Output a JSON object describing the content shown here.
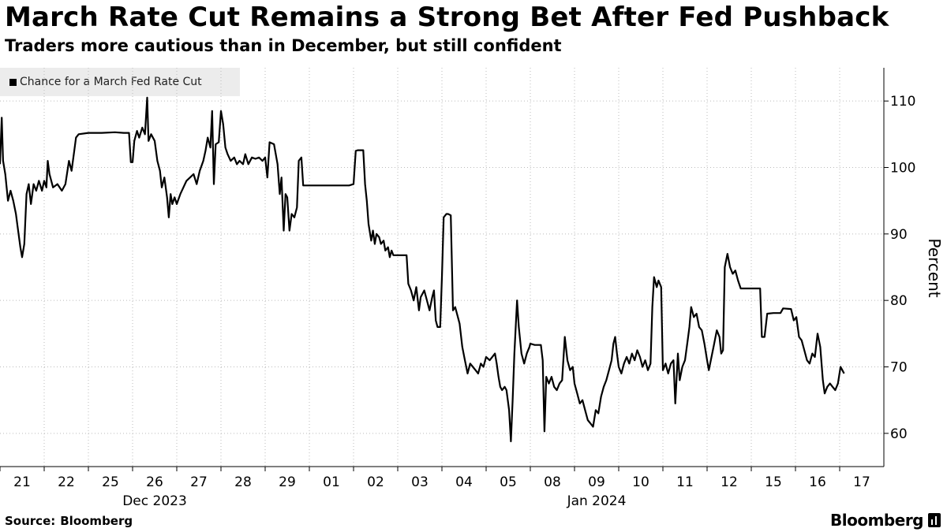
{
  "header": {
    "title": "March Rate Cut Remains a Strong Bet After Fed Pushback",
    "subtitle": "Traders more cautious than in December, but still confident"
  },
  "footer": {
    "source_label": "Source:",
    "source_value": "Bloomberg",
    "brand": "Bloomberg"
  },
  "colors": {
    "line": "#000000",
    "grid": "#bbbbbb",
    "legend_bg": "#ececec"
  },
  "chart_data": {
    "type": "line",
    "title": "March Rate Cut Remains a Strong Bet After Fed Pushback",
    "subtitle": "Traders more cautious than in December, but still confident",
    "ylabel": "Percent",
    "xlabel": "",
    "ylim": [
      55,
      115
    ],
    "yticks": [
      60,
      70,
      80,
      90,
      100,
      110
    ],
    "grid": "horizontal dotted",
    "legend": "top-left",
    "x_tick_labels": [
      "21",
      "22",
      "25",
      "26",
      "27",
      "28",
      "29",
      "01",
      "02",
      "03",
      "04",
      "05",
      "08",
      "09",
      "10",
      "11",
      "12",
      "15",
      "16",
      "17"
    ],
    "x_group_labels": [
      {
        "label": "Dec 2023",
        "center_session": 3
      },
      {
        "label": "Jan 2024",
        "center_session": 13
      }
    ],
    "x_domain": [
      0,
      20
    ],
    "series": [
      {
        "name": "Chance for a March Fed Rate Cut",
        "points": [
          [
            0.0,
            100.5
          ],
          [
            0.04,
            107.5
          ],
          [
            0.07,
            101
          ],
          [
            0.12,
            99
          ],
          [
            0.18,
            95
          ],
          [
            0.24,
            96.5
          ],
          [
            0.3,
            95
          ],
          [
            0.36,
            93
          ],
          [
            0.4,
            91
          ],
          [
            0.46,
            88
          ],
          [
            0.5,
            86.5
          ],
          [
            0.55,
            88.5
          ],
          [
            0.6,
            96
          ],
          [
            0.65,
            97.5
          ],
          [
            0.7,
            94.5
          ],
          [
            0.76,
            97.5
          ],
          [
            0.82,
            96.5
          ],
          [
            0.88,
            98
          ],
          [
            0.95,
            96.5
          ],
          [
            1.0,
            98
          ],
          [
            1.05,
            97
          ],
          [
            1.08,
            101
          ],
          [
            1.12,
            99
          ],
          [
            1.2,
            97
          ],
          [
            1.3,
            97.5
          ],
          [
            1.4,
            96.5
          ],
          [
            1.48,
            97.5
          ],
          [
            1.56,
            101
          ],
          [
            1.62,
            99.5
          ],
          [
            1.68,
            102.5
          ],
          [
            1.72,
            104.5
          ],
          [
            1.78,
            105
          ],
          [
            2.0,
            105.2
          ],
          [
            2.3,
            105.2
          ],
          [
            2.6,
            105.3
          ],
          [
            2.8,
            105.2
          ],
          [
            2.92,
            105.2
          ],
          [
            2.96,
            100.8
          ],
          [
            3.0,
            100.8
          ],
          [
            3.04,
            104
          ],
          [
            3.1,
            105.5
          ],
          [
            3.15,
            104.5
          ],
          [
            3.22,
            106
          ],
          [
            3.28,
            105
          ],
          [
            3.33,
            110.5
          ],
          [
            3.36,
            104
          ],
          [
            3.42,
            105
          ],
          [
            3.5,
            104
          ],
          [
            3.56,
            101
          ],
          [
            3.62,
            99.5
          ],
          [
            3.66,
            97
          ],
          [
            3.72,
            98.5
          ],
          [
            3.78,
            95.5
          ],
          [
            3.82,
            92.5
          ],
          [
            3.86,
            96
          ],
          [
            3.9,
            94.5
          ],
          [
            3.95,
            95.5
          ],
          [
            4.0,
            94.5
          ],
          [
            4.08,
            96
          ],
          [
            4.15,
            97
          ],
          [
            4.22,
            98
          ],
          [
            4.3,
            98.5
          ],
          [
            4.38,
            99
          ],
          [
            4.45,
            97.5
          ],
          [
            4.52,
            99.5
          ],
          [
            4.6,
            101
          ],
          [
            4.65,
            102.5
          ],
          [
            4.7,
            104.5
          ],
          [
            4.76,
            103
          ],
          [
            4.8,
            108.5
          ],
          [
            4.84,
            97.5
          ],
          [
            4.88,
            103.5
          ],
          [
            4.95,
            103.8
          ],
          [
            5.0,
            108.5
          ],
          [
            5.05,
            106.5
          ],
          [
            5.1,
            103
          ],
          [
            5.15,
            102
          ],
          [
            5.22,
            101
          ],
          [
            5.3,
            101.5
          ],
          [
            5.36,
            100.5
          ],
          [
            5.42,
            101
          ],
          [
            5.5,
            100.5
          ],
          [
            5.55,
            102
          ],
          [
            5.62,
            100.5
          ],
          [
            5.7,
            101.5
          ],
          [
            5.78,
            101.3
          ],
          [
            5.86,
            101.5
          ],
          [
            5.94,
            101
          ],
          [
            6.0,
            101.5
          ],
          [
            6.05,
            98.5
          ],
          [
            6.1,
            103.8
          ],
          [
            6.2,
            103.5
          ],
          [
            6.28,
            100.5
          ],
          [
            6.33,
            96
          ],
          [
            6.37,
            98.5
          ],
          [
            6.42,
            90.5
          ],
          [
            6.46,
            96
          ],
          [
            6.5,
            95.5
          ],
          [
            6.55,
            90.5
          ],
          [
            6.6,
            93
          ],
          [
            6.66,
            92.5
          ],
          [
            6.72,
            94
          ],
          [
            6.76,
            101
          ],
          [
            6.82,
            101.5
          ],
          [
            6.86,
            97.3
          ],
          [
            7.0,
            97.3
          ],
          [
            7.3,
            97.3
          ],
          [
            7.6,
            97.3
          ],
          [
            7.9,
            97.3
          ],
          [
            8.0,
            97.5
          ],
          [
            8.05,
            102.5
          ],
          [
            8.1,
            102.6
          ],
          [
            8.22,
            102.6
          ],
          [
            8.26,
            97.5
          ],
          [
            8.3,
            95
          ],
          [
            8.34,
            91.5
          ],
          [
            8.4,
            89
          ],
          [
            8.44,
            90.5
          ],
          [
            8.48,
            88.5
          ],
          [
            8.52,
            90
          ],
          [
            8.58,
            89.5
          ],
          [
            8.62,
            88.5
          ],
          [
            8.68,
            89
          ],
          [
            8.72,
            87.5
          ],
          [
            8.78,
            88
          ],
          [
            8.82,
            86.5
          ],
          [
            8.86,
            87.5
          ],
          [
            8.9,
            86.8
          ],
          [
            9.0,
            86.8
          ],
          [
            9.2,
            86.8
          ],
          [
            9.24,
            82.5
          ],
          [
            9.3,
            81.5
          ],
          [
            9.36,
            80
          ],
          [
            9.42,
            82
          ],
          [
            9.48,
            78.5
          ],
          [
            9.52,
            80.5
          ],
          [
            9.6,
            81.5
          ],
          [
            9.66,
            80
          ],
          [
            9.72,
            78.5
          ],
          [
            9.78,
            80.5
          ],
          [
            9.82,
            81.5
          ],
          [
            9.86,
            77
          ],
          [
            9.9,
            76
          ],
          [
            9.96,
            76
          ],
          [
            10.0,
            83.5
          ],
          [
            10.04,
            92.5
          ],
          [
            10.1,
            93
          ],
          [
            10.14,
            93
          ],
          [
            10.2,
            92.8
          ],
          [
            10.25,
            78.5
          ],
          [
            10.3,
            79
          ],
          [
            10.36,
            77.5
          ],
          [
            10.4,
            76.5
          ],
          [
            10.46,
            73
          ],
          [
            10.52,
            71
          ],
          [
            10.58,
            69
          ],
          [
            10.64,
            70.5
          ],
          [
            10.7,
            70
          ],
          [
            10.76,
            69.5
          ],
          [
            10.82,
            69
          ],
          [
            10.88,
            70.5
          ],
          [
            10.94,
            70
          ],
          [
            11.0,
            71.5
          ],
          [
            11.08,
            71
          ],
          [
            11.14,
            71.5
          ],
          [
            11.2,
            72
          ],
          [
            11.24,
            70.5
          ],
          [
            11.28,
            68.5
          ],
          [
            11.32,
            67
          ],
          [
            11.36,
            66.5
          ],
          [
            11.42,
            67
          ],
          [
            11.46,
            66.5
          ],
          [
            11.52,
            63.5
          ],
          [
            11.56,
            58.8
          ],
          [
            11.6,
            65
          ],
          [
            11.64,
            72
          ],
          [
            11.7,
            80
          ],
          [
            11.74,
            76
          ],
          [
            11.8,
            72
          ],
          [
            11.86,
            70.5
          ],
          [
            11.92,
            72
          ],
          [
            11.98,
            73
          ],
          [
            12.0,
            73.5
          ],
          [
            12.1,
            73.3
          ],
          [
            12.24,
            73.3
          ],
          [
            12.28,
            71
          ],
          [
            12.32,
            60.3
          ],
          [
            12.36,
            68.5
          ],
          [
            12.42,
            67.5
          ],
          [
            12.48,
            68.5
          ],
          [
            12.54,
            67
          ],
          [
            12.6,
            66.5
          ],
          [
            12.66,
            67.5
          ],
          [
            12.72,
            68
          ],
          [
            12.78,
            74.5
          ],
          [
            12.84,
            71
          ],
          [
            12.9,
            69.5
          ],
          [
            12.96,
            70
          ],
          [
            13.0,
            67.5
          ],
          [
            13.06,
            66
          ],
          [
            13.12,
            64.5
          ],
          [
            13.18,
            65
          ],
          [
            13.24,
            63.5
          ],
          [
            13.3,
            62
          ],
          [
            13.36,
            61.5
          ],
          [
            13.42,
            61
          ],
          [
            13.48,
            63.5
          ],
          [
            13.54,
            63
          ],
          [
            13.6,
            65.5
          ],
          [
            13.66,
            67
          ],
          [
            13.72,
            68
          ],
          [
            13.78,
            69.5
          ],
          [
            13.84,
            71
          ],
          [
            13.88,
            73.5
          ],
          [
            13.92,
            74.5
          ],
          [
            13.96,
            72
          ],
          [
            14.0,
            70
          ],
          [
            14.06,
            69
          ],
          [
            14.12,
            70.5
          ],
          [
            14.18,
            71.5
          ],
          [
            14.24,
            70.5
          ],
          [
            14.3,
            72
          ],
          [
            14.36,
            71
          ],
          [
            14.42,
            72.5
          ],
          [
            14.48,
            71.5
          ],
          [
            14.54,
            70
          ],
          [
            14.6,
            71
          ],
          [
            14.66,
            69.5
          ],
          [
            14.72,
            70.5
          ],
          [
            14.76,
            79
          ],
          [
            14.8,
            83.5
          ],
          [
            14.86,
            82
          ],
          [
            14.9,
            83
          ],
          [
            14.96,
            82
          ],
          [
            15.0,
            69.5
          ],
          [
            15.06,
            70.5
          ],
          [
            15.12,
            69
          ],
          [
            15.18,
            70.5
          ],
          [
            15.24,
            71
          ],
          [
            15.28,
            64.5
          ],
          [
            15.34,
            72
          ],
          [
            15.38,
            68
          ],
          [
            15.44,
            70
          ],
          [
            15.5,
            71
          ],
          [
            15.56,
            74
          ],
          [
            15.6,
            76
          ],
          [
            15.64,
            79
          ],
          [
            15.7,
            77.5
          ],
          [
            15.76,
            78
          ],
          [
            15.82,
            76
          ],
          [
            15.88,
            75.5
          ],
          [
            15.94,
            73.5
          ],
          [
            16.0,
            71
          ],
          [
            16.04,
            69.5
          ],
          [
            16.1,
            71.5
          ],
          [
            16.16,
            73.5
          ],
          [
            16.22,
            75.5
          ],
          [
            16.28,
            74.5
          ],
          [
            16.32,
            72
          ],
          [
            16.36,
            72.5
          ],
          [
            16.4,
            85
          ],
          [
            16.46,
            87
          ],
          [
            16.52,
            85
          ],
          [
            16.58,
            84
          ],
          [
            16.64,
            84.5
          ],
          [
            16.7,
            83
          ],
          [
            16.76,
            81.8
          ],
          [
            17.0,
            81.8
          ],
          [
            17.2,
            81.8
          ],
          [
            17.24,
            74.5
          ],
          [
            17.3,
            74.5
          ],
          [
            17.36,
            78
          ],
          [
            17.5,
            78.1
          ],
          [
            17.66,
            78.1
          ],
          [
            17.72,
            78.8
          ],
          [
            17.9,
            78.7
          ],
          [
            17.96,
            77
          ],
          [
            18.02,
            77.5
          ],
          [
            18.08,
            74.5
          ],
          [
            18.14,
            74
          ],
          [
            18.2,
            72.5
          ],
          [
            18.26,
            71
          ],
          [
            18.32,
            70.5
          ],
          [
            18.38,
            72
          ],
          [
            18.44,
            71.5
          ],
          [
            18.5,
            75
          ],
          [
            18.56,
            73
          ],
          [
            18.62,
            68
          ],
          [
            18.66,
            66
          ],
          [
            18.72,
            67
          ],
          [
            18.78,
            67.5
          ],
          [
            18.84,
            67
          ],
          [
            18.9,
            66.5
          ],
          [
            18.96,
            67.5
          ],
          [
            19.02,
            70
          ],
          [
            19.06,
            69.5
          ],
          [
            19.1,
            69
          ]
        ]
      }
    ]
  }
}
